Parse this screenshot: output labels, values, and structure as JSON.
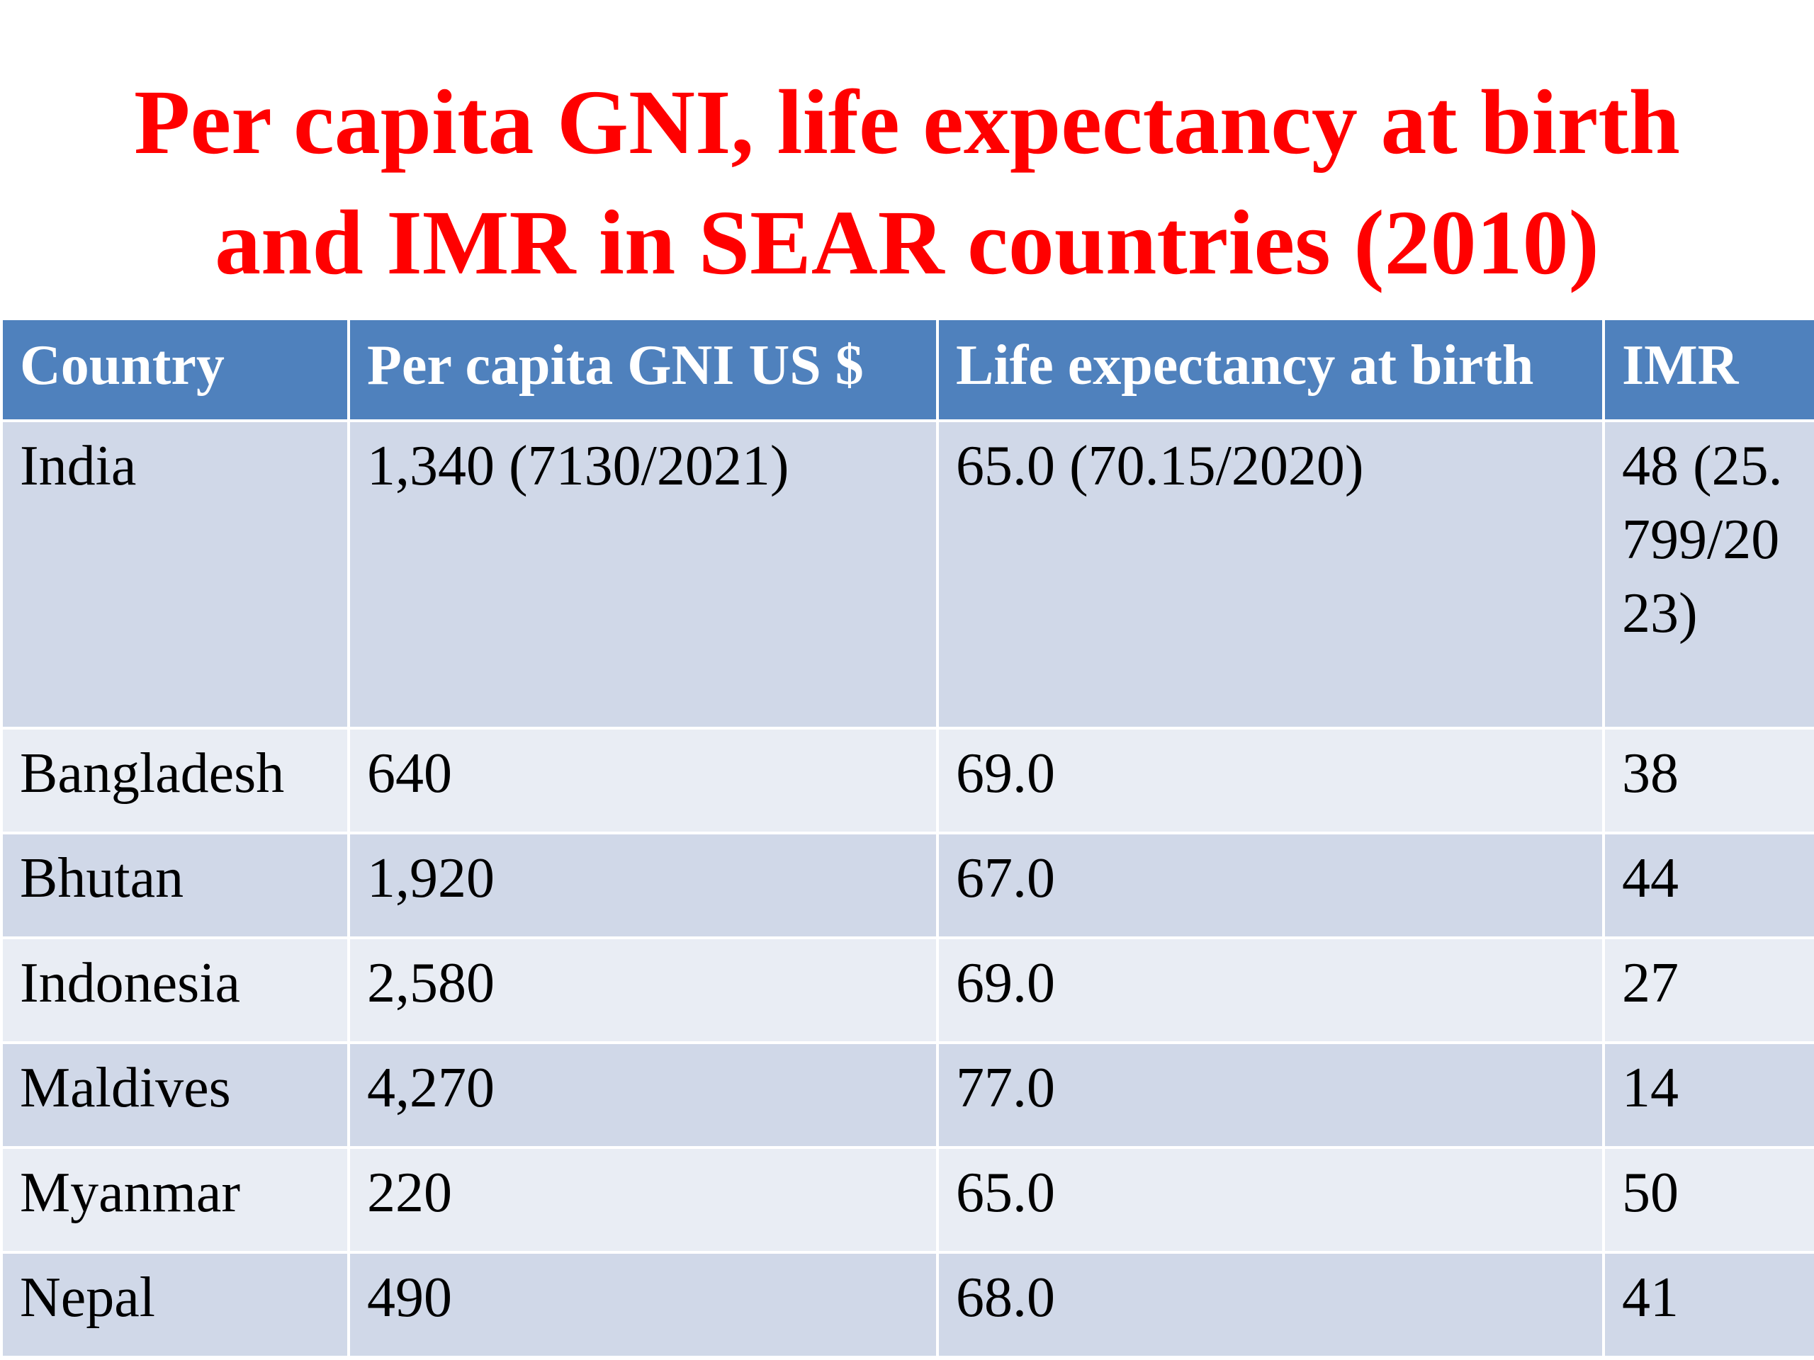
{
  "title": {
    "line1": "Per capita GNI, life expectancy at birth",
    "line2": "and IMR in SEAR countries (2010)"
  },
  "table": {
    "headers": [
      "Country",
      "Per capita GNI US $",
      "Life expectancy at birth",
      "IMR"
    ],
    "rows": [
      [
        "India",
        "1,340 (7130/2021)",
        "65.0 (70.15/2020)",
        "48 (25.799/2023)"
      ],
      [
        "Bangladesh",
        "640",
        "69.0",
        "38"
      ],
      [
        "Bhutan",
        "1,920",
        "67.0",
        "44"
      ],
      [
        "Indonesia",
        "2,580",
        "69.0",
        "27"
      ],
      [
        "Maldives",
        "4,270",
        "77.0",
        "14"
      ],
      [
        "Myanmar",
        "220",
        "65.0",
        "50"
      ],
      [
        "Nepal",
        "490",
        "68.0",
        "41"
      ]
    ]
  },
  "colors": {
    "title": "#ff0000",
    "header_bg": "#4f81bd",
    "row_band_dark": "#d0d8e8",
    "row_band_light": "#e9edf4"
  }
}
